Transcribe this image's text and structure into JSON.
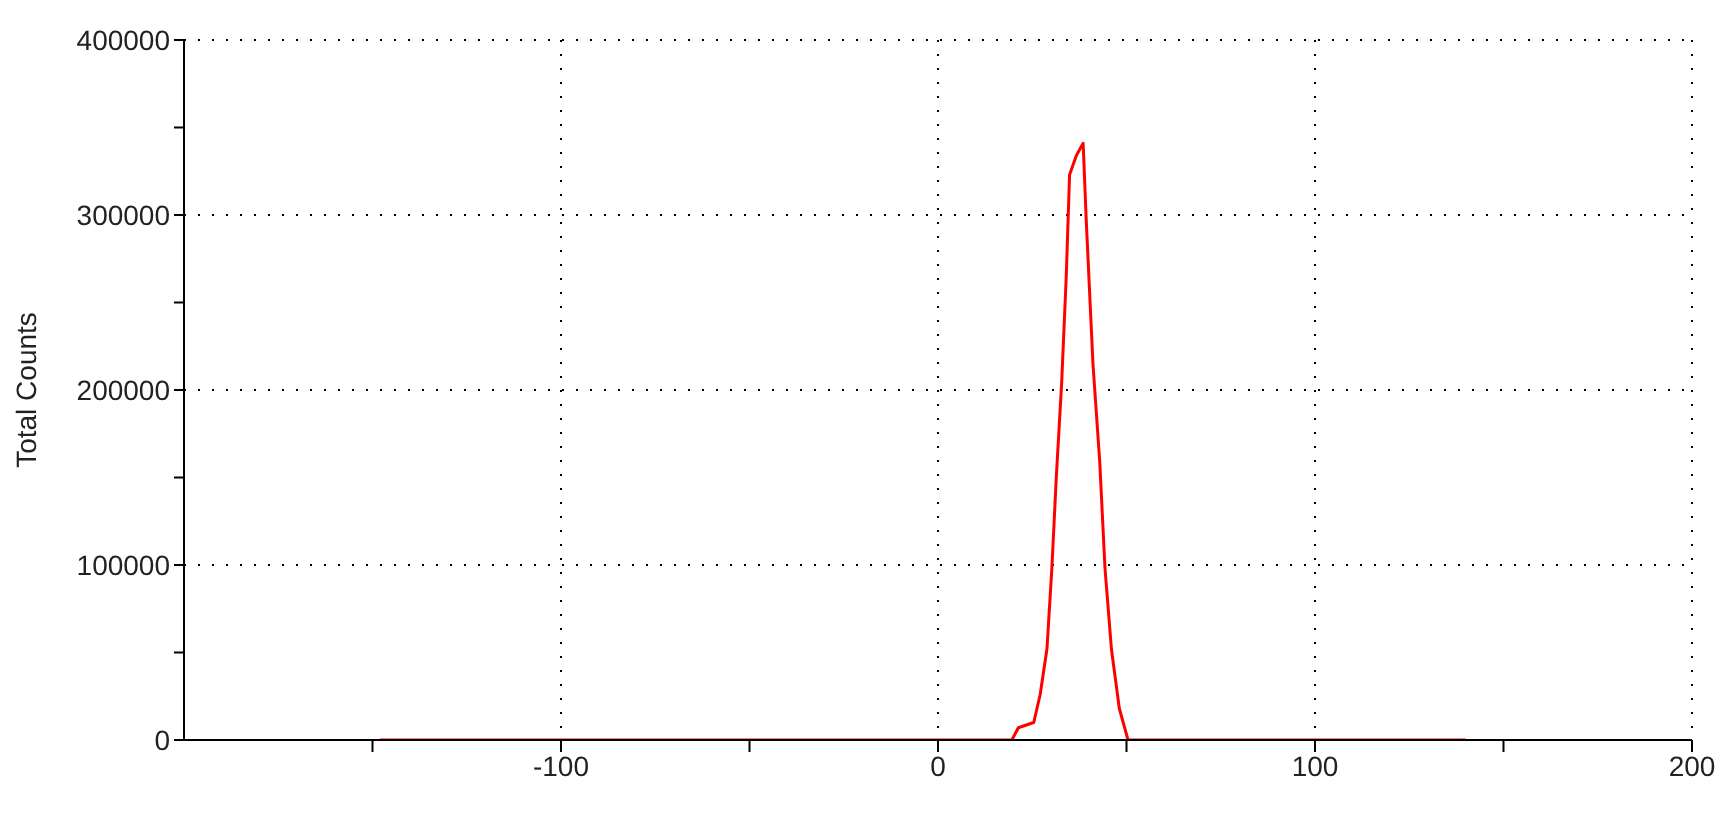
{
  "chart_data": {
    "type": "line",
    "ylabel": "Total Counts",
    "series": [
      {
        "color": "#ff0000",
        "x": [
          -148,
          19.6,
          21.3,
          25.4,
          27.1,
          28.9,
          30.2,
          31.4,
          32.8,
          34.0,
          34.9,
          36.7,
          38.5,
          39.3,
          41.1,
          42.9,
          44.3,
          46.0,
          48.1,
          50.4,
          140
        ],
        "values": [
          0,
          0,
          7000,
          10000,
          26000,
          52000,
          98000,
          151000,
          204000,
          264000,
          323000,
          334000,
          341000,
          298000,
          215000,
          159000,
          98000,
          52000,
          18000,
          0,
          0
        ]
      }
    ],
    "xlim": [
      -200,
      200
    ],
    "xticks": [
      {
        "value": -150,
        "label": null
      },
      -100,
      {
        "value": -50,
        "label": null
      },
      0,
      {
        "value": 50,
        "label": null
      },
      100,
      {
        "value": 150,
        "label": null
      },
      200
    ],
    "ylim": [
      0,
      400000
    ],
    "yticks": [
      0,
      {
        "value": 50000,
        "label": null
      },
      100000,
      {
        "value": 150000,
        "label": null
      },
      200000,
      {
        "value": 250000,
        "label": null
      },
      300000,
      {
        "value": 350000,
        "label": null
      },
      400000
    ],
    "grid": true,
    "marker": "none",
    "line_style": "solid"
  }
}
